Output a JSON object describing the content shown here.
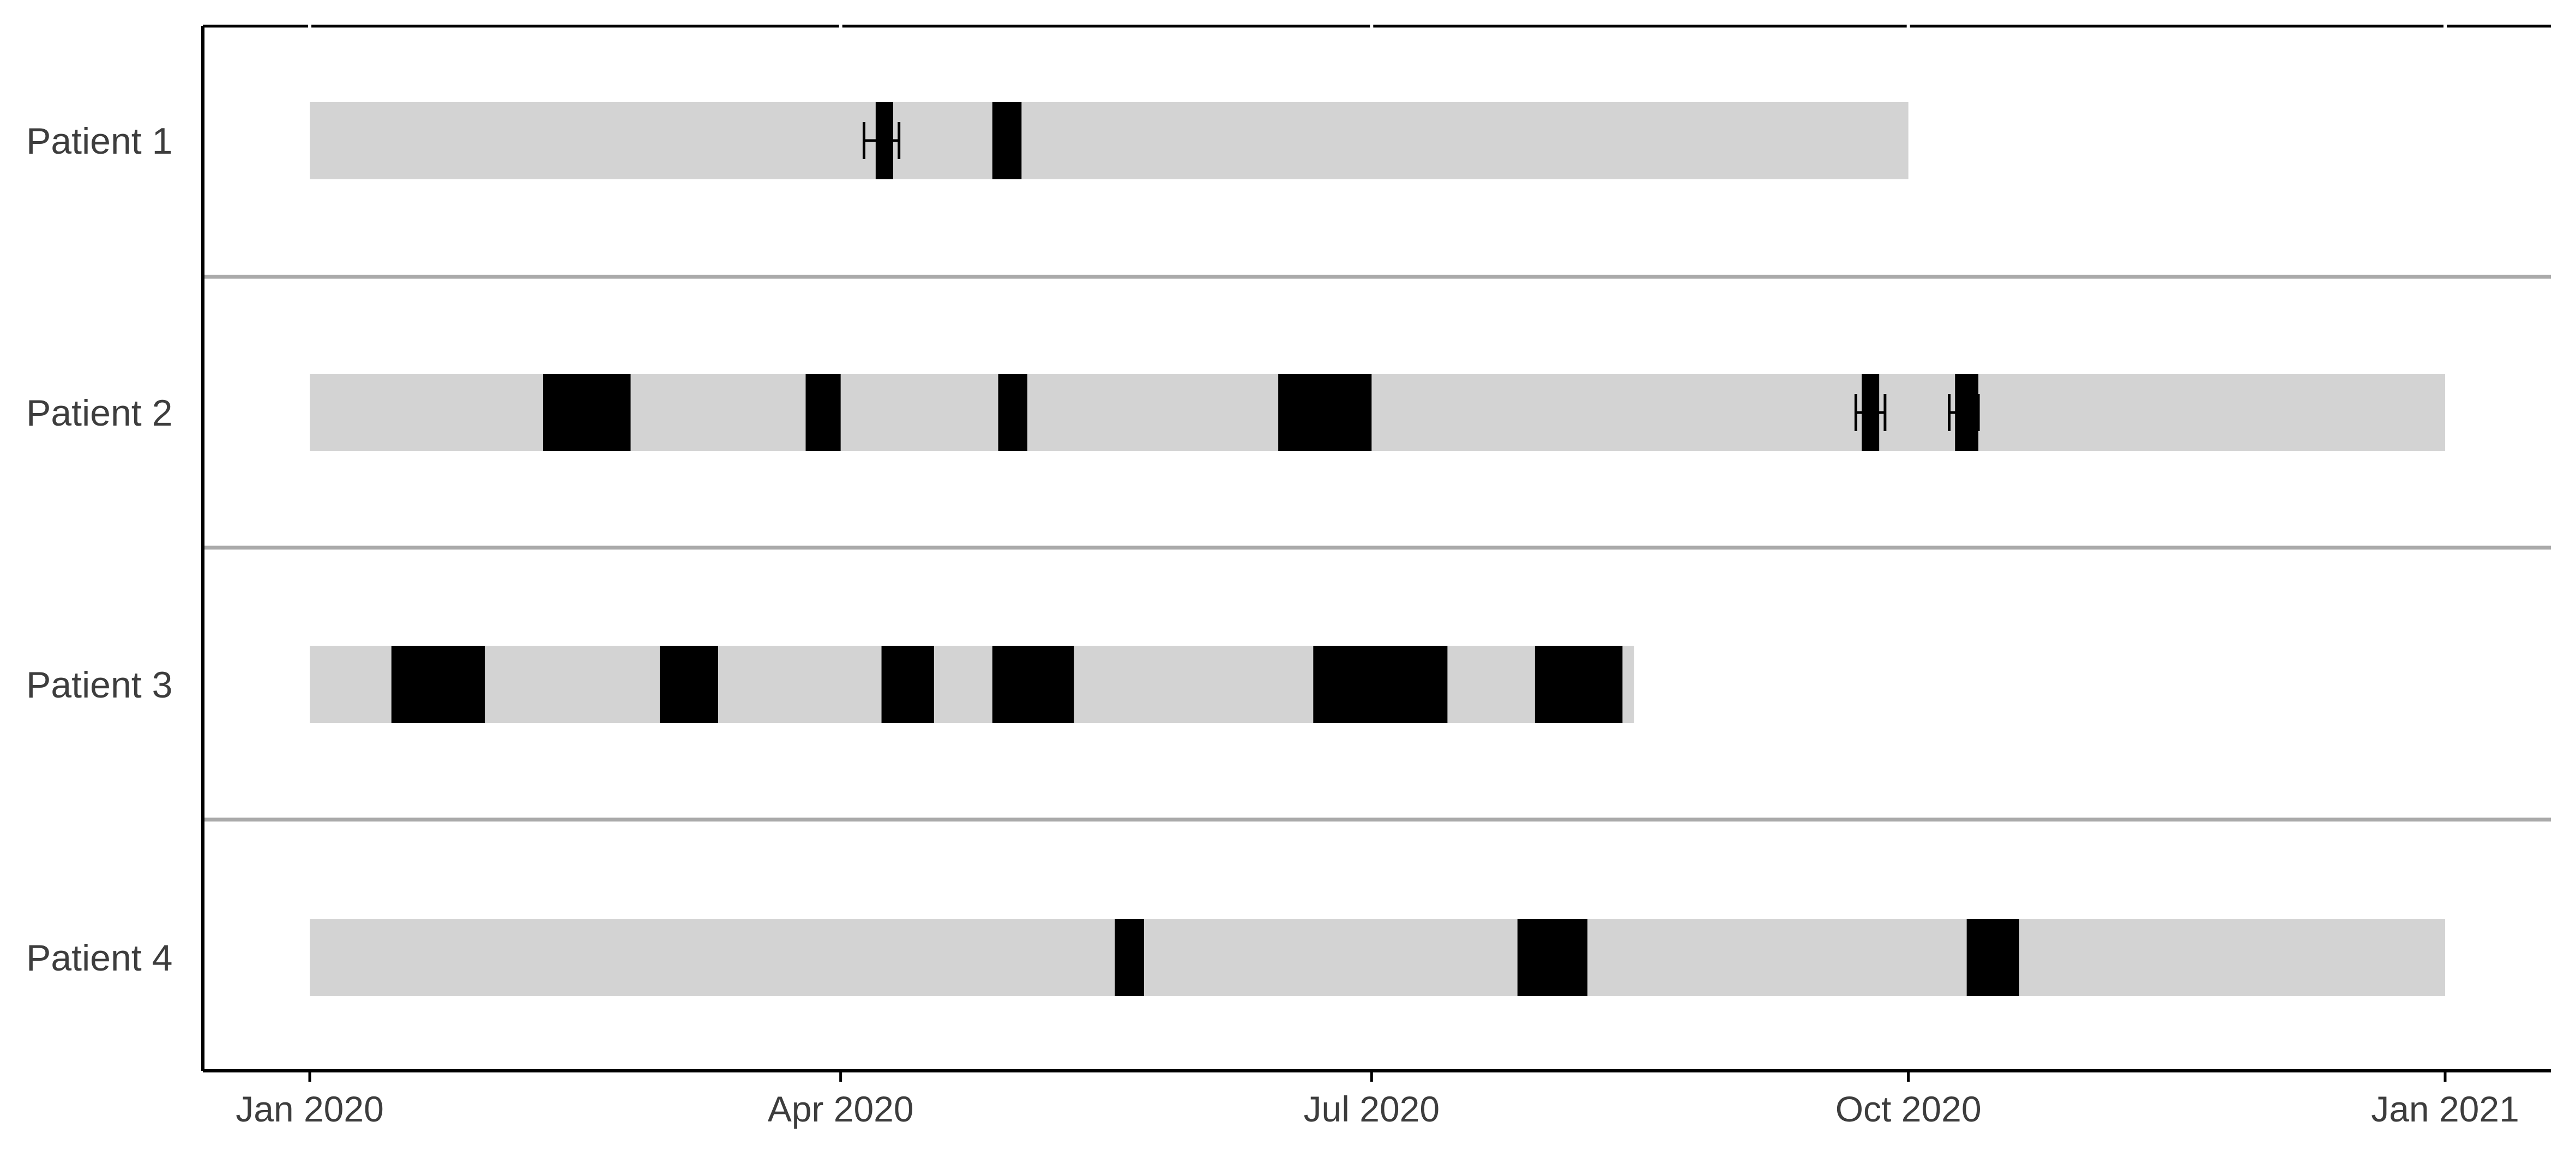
{
  "chart_data": {
    "type": "timeline",
    "title": "",
    "xlabel": "",
    "ylabel": "",
    "x_axis": {
      "type": "date",
      "range": [
        "2020-01-01",
        "2021-01-01"
      ],
      "ticks": [
        {
          "date": "2020-01-01",
          "label": "Jan 2020"
        },
        {
          "date": "2020-04-01",
          "label": "Apr 2020"
        },
        {
          "date": "2020-07-01",
          "label": "Jul 2020"
        },
        {
          "date": "2020-10-01",
          "label": "Oct 2020"
        },
        {
          "date": "2021-01-01",
          "label": "Jan 2021"
        }
      ]
    },
    "grid": false,
    "colors": {
      "follow_up": "#d3d3d3",
      "event": "#000000",
      "separator": "#aaaaaa",
      "axis": "#000000"
    },
    "patients": [
      {
        "label": "Patient 1",
        "follow_up": [
          "2020-01-01",
          "2020-10-01"
        ],
        "events": [
          {
            "start": "2020-04-07",
            "end": "2020-04-10",
            "error_bar": [
              "2020-04-05",
              "2020-04-11"
            ]
          },
          {
            "start": "2020-04-27",
            "end": "2020-05-02"
          }
        ]
      },
      {
        "label": "Patient 2",
        "follow_up": [
          "2020-01-01",
          "2021-01-01"
        ],
        "events": [
          {
            "start": "2020-02-10",
            "end": "2020-02-25"
          },
          {
            "start": "2020-03-26",
            "end": "2020-04-01"
          },
          {
            "start": "2020-04-28",
            "end": "2020-05-03"
          },
          {
            "start": "2020-06-15",
            "end": "2020-07-01"
          },
          {
            "start": "2020-09-23",
            "end": "2020-09-26",
            "error_bar": [
              "2020-09-22",
              "2020-09-27"
            ]
          },
          {
            "start": "2020-10-09",
            "end": "2020-10-13",
            "error_bar": [
              "2020-10-08",
              "2020-10-13"
            ]
          }
        ]
      },
      {
        "label": "Patient 3",
        "follow_up": [
          "2020-01-01",
          "2020-08-15"
        ],
        "events": [
          {
            "start": "2020-01-15",
            "end": "2020-01-31"
          },
          {
            "start": "2020-03-01",
            "end": "2020-03-11"
          },
          {
            "start": "2020-04-08",
            "end": "2020-04-17"
          },
          {
            "start": "2020-04-27",
            "end": "2020-05-11"
          },
          {
            "start": "2020-06-21",
            "end": "2020-07-14"
          },
          {
            "start": "2020-07-29",
            "end": "2020-08-13"
          }
        ]
      },
      {
        "label": "Patient 4",
        "follow_up": [
          "2020-01-01",
          "2021-01-01"
        ],
        "events": [
          {
            "start": "2020-05-18",
            "end": "2020-05-23"
          },
          {
            "start": "2020-07-26",
            "end": "2020-08-07"
          },
          {
            "start": "2020-10-11",
            "end": "2020-10-20"
          }
        ]
      }
    ]
  }
}
